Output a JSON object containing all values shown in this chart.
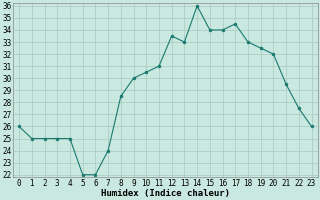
{
  "x": [
    0,
    1,
    2,
    3,
    4,
    5,
    6,
    7,
    8,
    9,
    10,
    11,
    12,
    13,
    14,
    15,
    16,
    17,
    18,
    19,
    20,
    21,
    22,
    23
  ],
  "y": [
    26,
    25,
    25,
    25,
    25,
    22,
    22,
    24,
    28.5,
    30,
    30.5,
    31,
    33.5,
    33,
    36,
    34,
    34,
    34.5,
    33,
    32.5,
    32,
    29.5,
    27.5,
    26
  ],
  "xlabel": "Humidex (Indice chaleur)",
  "ylim": [
    22,
    36
  ],
  "xlim": [
    -0.5,
    23.5
  ],
  "yticks": [
    22,
    23,
    24,
    25,
    26,
    27,
    28,
    29,
    30,
    31,
    32,
    33,
    34,
    35,
    36
  ],
  "xticks": [
    0,
    1,
    2,
    3,
    4,
    5,
    6,
    7,
    8,
    9,
    10,
    11,
    12,
    13,
    14,
    15,
    16,
    17,
    18,
    19,
    20,
    21,
    22,
    23
  ],
  "line_color": "#1a7a6e",
  "marker_color": "#1a7a6e",
  "bg_color": "#c8e8e0",
  "grid_color": "#a8c8c0",
  "xlabel_fontsize": 6.5,
  "tick_fontsize": 5.5
}
